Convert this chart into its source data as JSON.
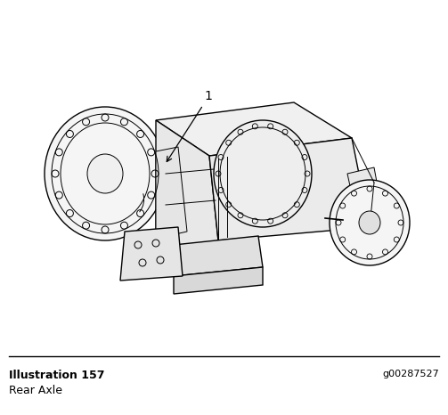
{
  "illustration_label": "Illustration 157",
  "caption": "Rear Axle",
  "id_code": "g00287527",
  "part_label": "1",
  "bg_color": "#ffffff",
  "line_color": "#000000",
  "separator_color": "#000000",
  "fig_width": 5.03,
  "fig_height": 4.66,
  "dpi": 100,
  "label_fontsize": 9,
  "caption_fontsize": 9,
  "id_fontsize": 8
}
